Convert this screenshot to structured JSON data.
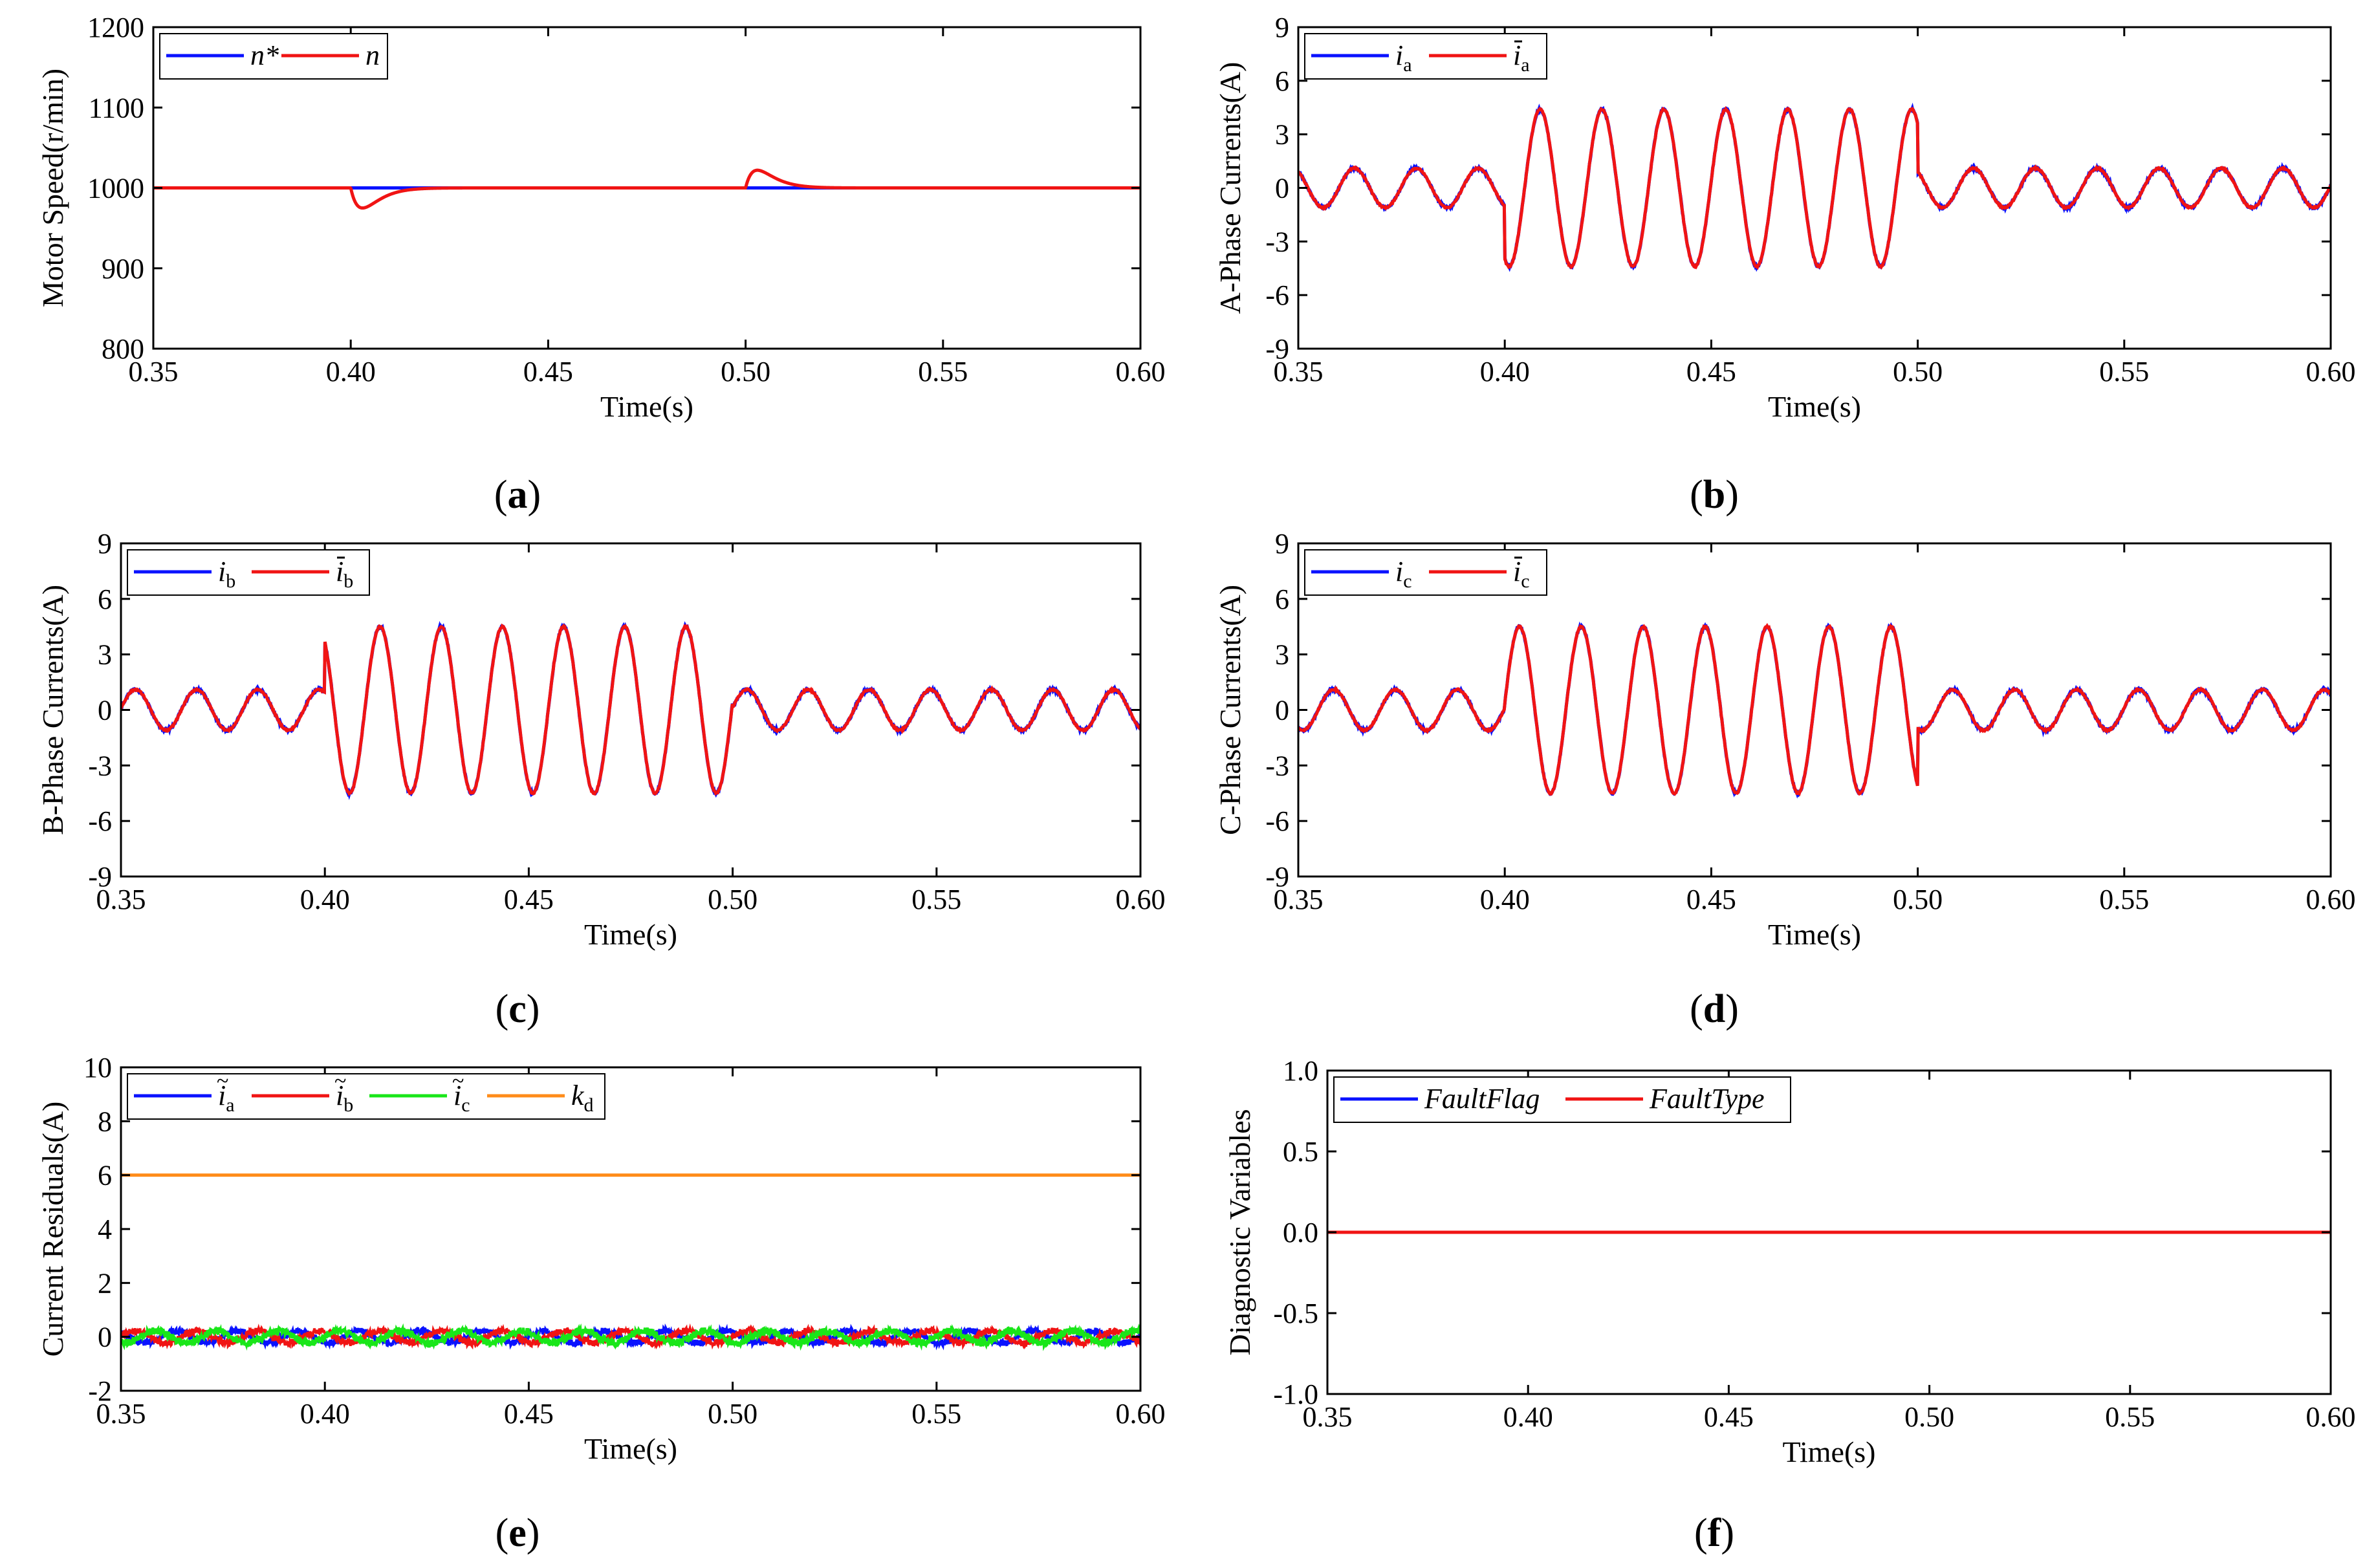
{
  "colors": {
    "blue": "#0a12ff",
    "red": "#f01414",
    "green": "#19e619",
    "orange": "#ff8c1a"
  },
  "chart_data": [
    {
      "id": "a",
      "type": "line",
      "caption": "(a)",
      "xlabel": "Time(s)",
      "ylabel": "Motor Speed(r/min)",
      "xlim": [
        0.35,
        0.6
      ],
      "ylim": [
        800,
        1200
      ],
      "xticks": [
        0.35,
        0.4,
        0.45,
        0.5,
        0.55,
        0.6
      ],
      "xtick_labels": [
        "0.35",
        "0.40",
        "0.45",
        "0.50",
        "0.55",
        "0.60"
      ],
      "yticks": [
        800,
        900,
        1000,
        1100,
        1200
      ],
      "ytick_labels": [
        "800",
        "900",
        "1000",
        "1100",
        "1200"
      ],
      "legend": {
        "position": "top-left",
        "items": [
          {
            "label": "n*",
            "color": "#0a12ff"
          },
          {
            "label": "n",
            "color": "#f01414"
          }
        ]
      },
      "series": [
        {
          "name": "n*",
          "color": "#0a12ff",
          "kind": "constant",
          "value": 1000
        },
        {
          "name": "n",
          "color": "#f01414",
          "kind": "speed",
          "value": 1000,
          "dips": [
            {
              "t": 0.4,
              "amp": -25
            },
            {
              "t": 0.5,
              "amp": 22
            }
          ]
        }
      ]
    },
    {
      "id": "b",
      "type": "line",
      "caption": "(b)",
      "xlabel": "Time(s)",
      "ylabel": "A-Phase Currents(A)",
      "xlim": [
        0.35,
        0.6
      ],
      "ylim": [
        -9,
        9
      ],
      "xticks": [
        0.35,
        0.4,
        0.45,
        0.5,
        0.55,
        0.6
      ],
      "xtick_labels": [
        "0.35",
        "0.40",
        "0.45",
        "0.50",
        "0.55",
        "0.60"
      ],
      "yticks": [
        -9,
        -6,
        -3,
        0,
        3,
        6,
        9
      ],
      "ytick_labels": [
        "-9",
        "-6",
        "-3",
        "0",
        "3",
        "6",
        "9"
      ],
      "legend": {
        "position": "top-left",
        "items": [
          {
            "label": "i",
            "sub": "a",
            "color": "#0a12ff"
          },
          {
            "label": "i",
            "sub": "a",
            "bar": true,
            "color": "#f01414"
          }
        ]
      },
      "series": [
        {
          "name": "i_a",
          "color": "#0a12ff",
          "kind": "phase",
          "amp_low": 1.1,
          "amp_high": 4.4,
          "freq": 66.7,
          "phase_deg": 0,
          "offset": 0,
          "noise": 0.15
        },
        {
          "name": "i_a_bar",
          "color": "#f01414",
          "kind": "phase",
          "amp_low": 1.1,
          "amp_high": 4.4,
          "freq": 66.7,
          "phase_deg": 0,
          "offset": 0,
          "noise": 0.08
        }
      ]
    },
    {
      "id": "c",
      "type": "line",
      "caption": "(c)",
      "xlabel": "Time(s)",
      "ylabel": "B-Phase Currents(A)",
      "xlim": [
        0.35,
        0.6
      ],
      "ylim": [
        -9,
        9
      ],
      "xticks": [
        0.35,
        0.4,
        0.45,
        0.5,
        0.55,
        0.6
      ],
      "xtick_labels": [
        "0.35",
        "0.40",
        "0.45",
        "0.50",
        "0.55",
        "0.60"
      ],
      "yticks": [
        -9,
        -6,
        -3,
        0,
        3,
        6,
        9
      ],
      "ytick_labels": [
        "-9",
        "-6",
        "-3",
        "0",
        "3",
        "6",
        "9"
      ],
      "legend": {
        "position": "top-left",
        "items": [
          {
            "label": "i",
            "sub": "b",
            "color": "#0a12ff"
          },
          {
            "label": "i",
            "sub": "b",
            "bar": true,
            "color": "#f01414"
          }
        ]
      },
      "series": [
        {
          "name": "i_b",
          "color": "#0a12ff",
          "kind": "phase",
          "amp_low": 1.1,
          "amp_high": 4.5,
          "freq": 66.7,
          "phase_deg": -120,
          "offset": 0,
          "noise": 0.15
        },
        {
          "name": "i_b_bar",
          "color": "#f01414",
          "kind": "phase",
          "amp_low": 1.1,
          "amp_high": 4.5,
          "freq": 66.7,
          "phase_deg": -120,
          "offset": 0,
          "noise": 0.08
        }
      ]
    },
    {
      "id": "d",
      "type": "line",
      "caption": "(d)",
      "xlabel": "Time(s)",
      "ylabel": "C-Phase Currents(A)",
      "xlim": [
        0.35,
        0.6
      ],
      "ylim": [
        -9,
        9
      ],
      "xticks": [
        0.35,
        0.4,
        0.45,
        0.5,
        0.55,
        0.6
      ],
      "xtick_labels": [
        "0.35",
        "0.40",
        "0.45",
        "0.50",
        "0.55",
        "0.60"
      ],
      "yticks": [
        -9,
        -6,
        -3,
        0,
        3,
        6,
        9
      ],
      "ytick_labels": [
        "-9",
        "-6",
        "-3",
        "0",
        "3",
        "6",
        "9"
      ],
      "legend": {
        "position": "top-left",
        "items": [
          {
            "label": "i",
            "sub": "c",
            "color": "#0a12ff"
          },
          {
            "label": "i",
            "sub": "c",
            "bar": true,
            "color": "#f01414"
          }
        ]
      },
      "series": [
        {
          "name": "i_c",
          "color": "#0a12ff",
          "kind": "phase",
          "amp_low": 1.1,
          "amp_high": 4.5,
          "freq": 66.7,
          "phase_deg": 120,
          "offset": 0,
          "noise": 0.15
        },
        {
          "name": "i_c_bar",
          "color": "#f01414",
          "kind": "phase",
          "amp_low": 1.1,
          "amp_high": 4.5,
          "freq": 66.7,
          "phase_deg": 120,
          "offset": 0,
          "noise": 0.08
        }
      ]
    },
    {
      "id": "e",
      "type": "line",
      "caption": "(e)",
      "xlabel": "Time(s)",
      "ylabel": "Current Residuals(A)",
      "xlim": [
        0.35,
        0.6
      ],
      "ylim": [
        -2,
        10
      ],
      "xticks": [
        0.35,
        0.4,
        0.45,
        0.5,
        0.55,
        0.6
      ],
      "xtick_labels": [
        "0.35",
        "0.40",
        "0.45",
        "0.50",
        "0.55",
        "0.60"
      ],
      "yticks": [
        -2,
        0,
        2,
        4,
        6,
        8,
        10
      ],
      "ytick_labels": [
        "-2",
        "0",
        "2",
        "4",
        "6",
        "8",
        "10"
      ],
      "legend": {
        "position": "top-left",
        "items": [
          {
            "label": "i",
            "sub": "a",
            "tilde": true,
            "color": "#0a12ff"
          },
          {
            "label": "i",
            "sub": "b",
            "tilde": true,
            "color": "#f01414"
          },
          {
            "label": "i",
            "sub": "c",
            "tilde": true,
            "color": "#19e619"
          },
          {
            "label": "k",
            "sub": "d",
            "color": "#ff8c1a"
          }
        ]
      },
      "series": [
        {
          "name": "i_a_tilde",
          "color": "#0a12ff",
          "kind": "residual",
          "amp": 0.22,
          "freq": 66.7,
          "phase_deg": 0,
          "noise": 0.12
        },
        {
          "name": "i_b_tilde",
          "color": "#f01414",
          "kind": "residual",
          "amp": 0.22,
          "freq": 66.7,
          "phase_deg": -120,
          "noise": 0.12
        },
        {
          "name": "i_c_tilde",
          "color": "#19e619",
          "kind": "residual",
          "amp": 0.22,
          "freq": 66.7,
          "phase_deg": 120,
          "noise": 0.14
        },
        {
          "name": "k_d",
          "color": "#ff8c1a",
          "kind": "constant",
          "value": 6
        }
      ]
    },
    {
      "id": "f",
      "type": "line",
      "caption": "(f)",
      "xlabel": "Time(s)",
      "ylabel": "Diagnostic Variables",
      "xlim": [
        0.35,
        0.6
      ],
      "ylim": [
        -1.0,
        1.0
      ],
      "xticks": [
        0.35,
        0.4,
        0.45,
        0.5,
        0.55,
        0.6
      ],
      "xtick_labels": [
        "0.35",
        "0.40",
        "0.45",
        "0.50",
        "0.55",
        "0.60"
      ],
      "yticks": [
        -1.0,
        -0.5,
        0.0,
        0.5,
        1.0
      ],
      "ytick_labels": [
        "-1.0",
        "-0.5",
        "0.0",
        "0.5",
        "1.0"
      ],
      "legend": {
        "position": "top-left",
        "items": [
          {
            "label": "FaultFlag",
            "italic": true,
            "color": "#0a12ff"
          },
          {
            "label": "FaultType",
            "italic": true,
            "color": "#f01414"
          }
        ]
      },
      "series": [
        {
          "name": "FaultFlag",
          "color": "#0a12ff",
          "kind": "constant",
          "value": 0
        },
        {
          "name": "FaultType",
          "color": "#f01414",
          "kind": "constant",
          "value": 0
        }
      ]
    }
  ]
}
